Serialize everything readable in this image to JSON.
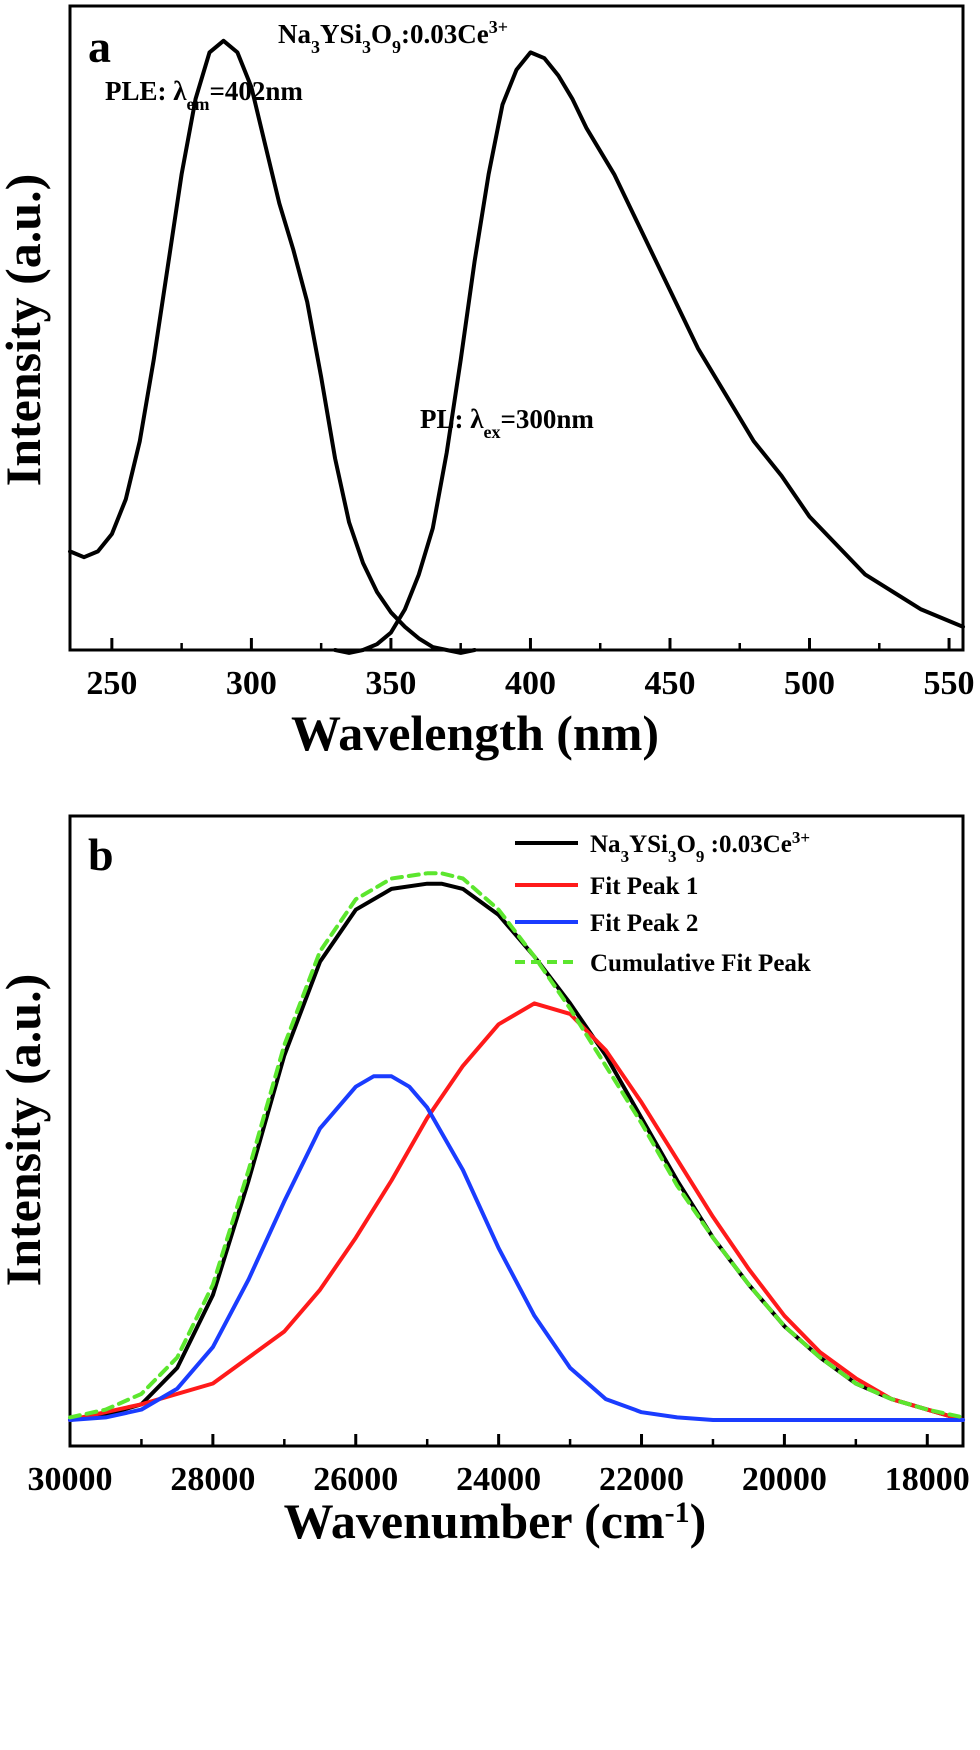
{
  "chart_data": [
    {
      "type": "line",
      "panel_label": "a",
      "title": "Na3YSi3O9:0.03Ce3+",
      "title_parts": {
        "base": "Na",
        "sub1": "3",
        "mid1": "YSi",
        "sub2": "3",
        "mid2": "O",
        "sub3": "9",
        "mid3": ":0.03Ce",
        "sup": "3+"
      },
      "xlabel": "Wavelength (nm)",
      "ylabel": "Intensity (a.u.)",
      "xlim": [
        235,
        555
      ],
      "ylim": [
        0,
        1.11
      ],
      "xticks": [
        250,
        300,
        350,
        400,
        450,
        500,
        550
      ],
      "show_yticks": false,
      "grid": false,
      "annotations": [
        {
          "text": "PLE:  λem=402nm",
          "prefix": "PLE:  λ",
          "sub": "em",
          "suffix": "=402nm"
        },
        {
          "text": "PL:  λex=300nm",
          "prefix": "PL:  λ",
          "sub": "ex",
          "suffix": "=300nm"
        }
      ],
      "series": [
        {
          "color": "#000000",
          "x": [
            235,
            240,
            245,
            250,
            255,
            260,
            265,
            270,
            275,
            280,
            285,
            290,
            295,
            300,
            305,
            310,
            315,
            320,
            325,
            330,
            335,
            340,
            345,
            350,
            355,
            360,
            365,
            370,
            375,
            380
          ],
          "y": [
            0.17,
            0.16,
            0.17,
            0.2,
            0.26,
            0.36,
            0.5,
            0.66,
            0.82,
            0.95,
            1.03,
            1.05,
            1.03,
            0.97,
            0.87,
            0.77,
            0.69,
            0.6,
            0.47,
            0.33,
            0.22,
            0.15,
            0.1,
            0.065,
            0.04,
            0.02,
            0.005,
            0.0,
            -0.005,
            0.0
          ]
        },
        {
          "color": "#000000",
          "x": [
            330,
            335,
            340,
            345,
            350,
            355,
            360,
            365,
            370,
            375,
            380,
            385,
            390,
            395,
            400,
            405,
            410,
            415,
            420,
            430,
            440,
            450,
            460,
            470,
            480,
            490,
            500,
            510,
            520,
            530,
            540,
            550,
            555
          ],
          "y": [
            0.0,
            -0.005,
            0.0,
            0.01,
            0.03,
            0.07,
            0.13,
            0.21,
            0.34,
            0.5,
            0.67,
            0.82,
            0.94,
            1.0,
            1.03,
            1.02,
            0.99,
            0.95,
            0.9,
            0.82,
            0.72,
            0.62,
            0.52,
            0.44,
            0.36,
            0.3,
            0.23,
            0.18,
            0.13,
            0.1,
            0.07,
            0.05,
            0.04
          ]
        }
      ]
    },
    {
      "type": "line",
      "panel_label": "b",
      "xlabel": "Wavenumber (cm-1)",
      "xlabel_parts": {
        "main": "Wavenumber (cm",
        "sup": "-1",
        "close": ")"
      },
      "ylabel": "Intensity (a.u.)",
      "xlim": [
        30000,
        17500
      ],
      "ylim": [
        -0.05,
        1.16
      ],
      "xticks": [
        30000,
        28000,
        26000,
        24000,
        22000,
        20000,
        18000
      ],
      "show_yticks": false,
      "grid": false,
      "legend_position": "top-right",
      "series": [
        {
          "name": "Na3YSi3O9 :0.03Ce3+",
          "name_parts": {
            "base": "Na",
            "sub1": "3",
            "mid1": "YSi",
            "sub2": "3",
            "mid2": "O",
            "sub3": "9",
            "mid3": " :0.03Ce",
            "sup": "3+"
          },
          "color": "#000000",
          "dash": false,
          "x": [
            30000,
            29500,
            29000,
            28500,
            28000,
            27500,
            27000,
            26500,
            26000,
            25500,
            25000,
            24800,
            24500,
            24000,
            23500,
            23000,
            22500,
            22000,
            21500,
            21000,
            20500,
            20000,
            19500,
            19000,
            18500,
            18000,
            17500
          ],
          "y": [
            0.0,
            0.01,
            0.03,
            0.1,
            0.24,
            0.46,
            0.7,
            0.88,
            0.98,
            1.02,
            1.03,
            1.03,
            1.02,
            0.97,
            0.89,
            0.8,
            0.7,
            0.58,
            0.46,
            0.35,
            0.26,
            0.18,
            0.12,
            0.07,
            0.04,
            0.02,
            0.0
          ]
        },
        {
          "name": "Fit Peak 1",
          "color": "#ff1a1a",
          "dash": false,
          "x": [
            30000,
            29000,
            28000,
            27000,
            26500,
            26000,
            25500,
            25000,
            24500,
            24000,
            23500,
            23000,
            22500,
            22000,
            21500,
            21000,
            20500,
            20000,
            19500,
            19000,
            18500,
            18000,
            17500
          ],
          "y": [
            0.0,
            0.03,
            0.07,
            0.17,
            0.25,
            0.35,
            0.46,
            0.58,
            0.68,
            0.76,
            0.8,
            0.78,
            0.71,
            0.61,
            0.5,
            0.39,
            0.29,
            0.2,
            0.13,
            0.08,
            0.04,
            0.02,
            0.0
          ]
        },
        {
          "name": "Fit Peak 2",
          "color": "#1a3cff",
          "dash": false,
          "x": [
            30000,
            29500,
            29000,
            28500,
            28000,
            27500,
            27000,
            26500,
            26000,
            25750,
            25500,
            25250,
            25000,
            24500,
            24000,
            23500,
            23000,
            22500,
            22000,
            21500,
            21000,
            20000,
            19000,
            18000,
            17500
          ],
          "y": [
            0.0,
            0.005,
            0.02,
            0.06,
            0.14,
            0.27,
            0.42,
            0.56,
            0.64,
            0.66,
            0.66,
            0.64,
            0.6,
            0.48,
            0.33,
            0.2,
            0.1,
            0.04,
            0.015,
            0.005,
            0.0,
            0.0,
            0.0,
            0.0,
            0.0
          ]
        },
        {
          "name": "Cumulative Fit Peak",
          "color": "#5ce62e",
          "dash": true,
          "x": [
            30000,
            29500,
            29000,
            28500,
            28000,
            27500,
            27000,
            26500,
            26000,
            25500,
            25000,
            24800,
            24500,
            24000,
            23500,
            23000,
            22500,
            22000,
            21500,
            21000,
            20500,
            20000,
            19500,
            19000,
            18500,
            18000,
            17500
          ],
          "y": [
            0.005,
            0.02,
            0.05,
            0.12,
            0.26,
            0.48,
            0.72,
            0.9,
            1.0,
            1.04,
            1.05,
            1.05,
            1.04,
            0.98,
            0.89,
            0.79,
            0.68,
            0.57,
            0.45,
            0.35,
            0.26,
            0.18,
            0.12,
            0.07,
            0.04,
            0.02,
            0.005
          ]
        }
      ]
    }
  ]
}
